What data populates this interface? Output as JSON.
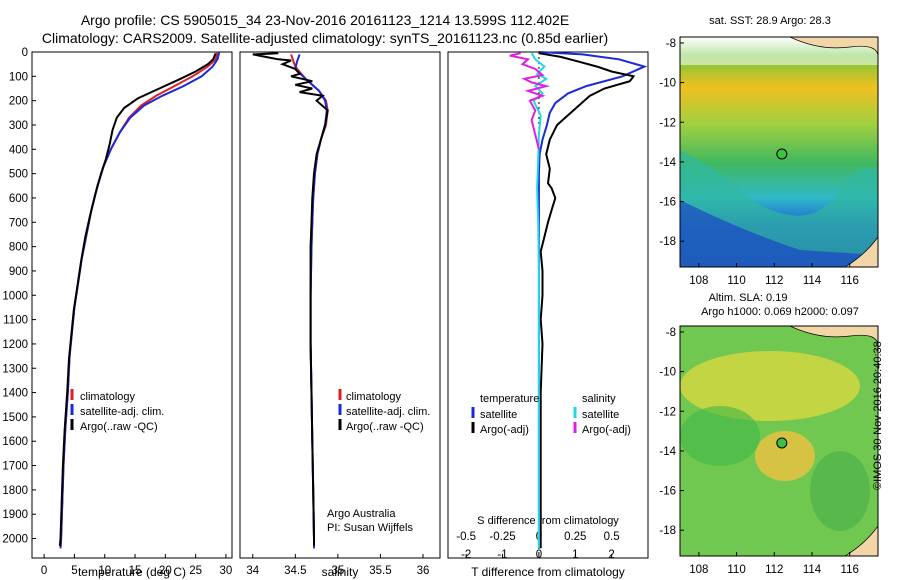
{
  "header": {
    "line1": "Argo profile: CS 5905015_34 23-Nov-2016 20161123_1214 13.599S 112.402E",
    "line2": "Climatology: CARS2009. Satellite-adjusted climatology: synTS_20161123.nc (0.85d earlier)"
  },
  "colors": {
    "climatology": "#e02020",
    "satellite": "#1a2ad8",
    "argo": "#000000",
    "salinity_sat": "#22d8e8",
    "salinity_argo": "#e020e0"
  },
  "chart_data": [
    {
      "type": "line",
      "xlabel": "temperature (deg C)",
      "ylabel": "",
      "xlim": [
        -2,
        31
      ],
      "ylim": [
        2080,
        0
      ],
      "xticks": [
        0,
        5,
        10,
        15,
        20,
        25,
        30
      ],
      "yticks": [
        0,
        100,
        200,
        300,
        400,
        500,
        600,
        700,
        800,
        900,
        1000,
        1100,
        1200,
        1300,
        1400,
        1500,
        1600,
        1700,
        1800,
        1900,
        2000
      ],
      "legend": [
        "climatology",
        "satellite-adj. clim.",
        "Argo(..raw -QC)"
      ],
      "series": [
        {
          "name": "climatology",
          "color": "#e02020",
          "points": [
            [
              28.6,
              0
            ],
            [
              28.3,
              30
            ],
            [
              27,
              60
            ],
            [
              24.5,
              100
            ],
            [
              21.5,
              140
            ],
            [
              18.5,
              180
            ],
            [
              16,
              220
            ],
            [
              14,
              270
            ],
            [
              12.5,
              330
            ],
            [
              11,
              400
            ],
            [
              9.8,
              470
            ],
            [
              8.8,
              550
            ],
            [
              7.8,
              650
            ],
            [
              7,
              750
            ],
            [
              6.2,
              850
            ],
            [
              5.6,
              950
            ],
            [
              5,
              1050
            ],
            [
              4.6,
              1150
            ],
            [
              4.2,
              1250
            ],
            [
              3.9,
              1400
            ],
            [
              3.5,
              1550
            ],
            [
              3.2,
              1700
            ],
            [
              3,
              1850
            ],
            [
              2.8,
              2000
            ],
            [
              2.7,
              2040
            ]
          ]
        },
        {
          "name": "satellite-adj. clim.",
          "color": "#1a2ad8",
          "points": [
            [
              28.9,
              0
            ],
            [
              28.6,
              30
            ],
            [
              27.8,
              60
            ],
            [
              26,
              100
            ],
            [
              23,
              140
            ],
            [
              19.5,
              180
            ],
            [
              16.5,
              220
            ],
            [
              14.2,
              270
            ],
            [
              12.5,
              330
            ],
            [
              11,
              400
            ],
            [
              9.8,
              470
            ],
            [
              8.8,
              550
            ],
            [
              7.8,
              650
            ],
            [
              7,
              750
            ],
            [
              6.2,
              850
            ],
            [
              5.6,
              950
            ],
            [
              5,
              1050
            ],
            [
              4.6,
              1150
            ],
            [
              4.2,
              1250
            ],
            [
              3.9,
              1400
            ],
            [
              3.5,
              1550
            ],
            [
              3.2,
              1700
            ],
            [
              3,
              1850
            ],
            [
              2.8,
              2000
            ],
            [
              2.7,
              2040
            ]
          ]
        },
        {
          "name": "Argo(..raw -QC)",
          "color": "#000000",
          "points": [
            [
              28.3,
              5
            ],
            [
              27.9,
              30
            ],
            [
              27,
              50
            ],
            [
              25,
              80
            ],
            [
              22.5,
              110
            ],
            [
              19,
              150
            ],
            [
              15.5,
              190
            ],
            [
              13.2,
              230
            ],
            [
              12,
              270
            ],
            [
              11.3,
              320
            ],
            [
              10.8,
              380
            ],
            [
              10.2,
              440
            ],
            [
              9.4,
              500
            ],
            [
              8.5,
              580
            ],
            [
              7.6,
              670
            ],
            [
              6.8,
              760
            ],
            [
              6.1,
              860
            ],
            [
              5.5,
              960
            ],
            [
              4.9,
              1060
            ],
            [
              4.5,
              1160
            ],
            [
              4.1,
              1260
            ],
            [
              3.8,
              1400
            ],
            [
              3.4,
              1550
            ],
            [
              3.1,
              1700
            ],
            [
              2.9,
              1850
            ],
            [
              2.7,
              2000
            ],
            [
              2.6,
              2030
            ]
          ]
        }
      ]
    },
    {
      "type": "line",
      "xlabel": "salinity",
      "xlim": [
        33.85,
        36.2
      ],
      "ylim": [
        2080,
        0
      ],
      "xticks": [
        34,
        34.5,
        35,
        35.5,
        36
      ],
      "legend": [
        "climatology",
        "satellite-adj. clim.",
        "Argo(..raw -QC)"
      ],
      "annotations": [
        "Argo Australia",
        "PI: Susan Wijffels"
      ],
      "series": [
        {
          "name": "climatology",
          "color": "#e02020",
          "points": [
            [
              34.45,
              10
            ],
            [
              34.5,
              60
            ],
            [
              34.62,
              110
            ],
            [
              34.78,
              160
            ],
            [
              34.86,
              200
            ],
            [
              34.88,
              240
            ],
            [
              34.86,
              300
            ],
            [
              34.8,
              360
            ],
            [
              34.76,
              420
            ],
            [
              34.73,
              500
            ],
            [
              34.71,
              600
            ],
            [
              34.7,
              700
            ],
            [
              34.69,
              800
            ],
            [
              34.68,
              1000
            ],
            [
              34.68,
              1200
            ],
            [
              34.69,
              1400
            ],
            [
              34.7,
              1600
            ],
            [
              34.71,
              1800
            ],
            [
              34.72,
              2000
            ],
            [
              34.72,
              2040
            ]
          ]
        },
        {
          "name": "satellite-adj. clim.",
          "color": "#1a2ad8",
          "points": [
            [
              34.55,
              10
            ],
            [
              34.52,
              40
            ],
            [
              34.5,
              70
            ],
            [
              34.62,
              110
            ],
            [
              34.78,
              160
            ],
            [
              34.85,
              200
            ],
            [
              34.87,
              240
            ],
            [
              34.85,
              300
            ],
            [
              34.8,
              360
            ],
            [
              34.76,
              420
            ],
            [
              34.73,
              500
            ],
            [
              34.71,
              600
            ],
            [
              34.7,
              700
            ],
            [
              34.69,
              800
            ],
            [
              34.68,
              1000
            ],
            [
              34.68,
              1200
            ],
            [
              34.69,
              1400
            ],
            [
              34.7,
              1600
            ],
            [
              34.71,
              1800
            ],
            [
              34.72,
              2000
            ],
            [
              34.72,
              2040
            ]
          ]
        },
        {
          "name": "Argo(..raw -QC)",
          "color": "#000000",
          "points": [
            [
              34.3,
              5
            ],
            [
              34.0,
              10
            ],
            [
              34.15,
              20
            ],
            [
              34.3,
              30
            ],
            [
              34.45,
              35
            ],
            [
              34.35,
              50
            ],
            [
              34.5,
              70
            ],
            [
              34.55,
              90
            ],
            [
              34.45,
              100
            ],
            [
              34.7,
              120
            ],
            [
              34.5,
              135
            ],
            [
              34.7,
              150
            ],
            [
              34.55,
              165
            ],
            [
              34.82,
              180
            ],
            [
              34.75,
              200
            ],
            [
              34.88,
              240
            ],
            [
              34.85,
              300
            ],
            [
              34.8,
              360
            ],
            [
              34.75,
              420
            ],
            [
              34.72,
              500
            ],
            [
              34.7,
              600
            ],
            [
              34.69,
              700
            ],
            [
              34.68,
              800
            ],
            [
              34.68,
              1000
            ],
            [
              34.68,
              1200
            ],
            [
              34.69,
              1400
            ],
            [
              34.7,
              1600
            ],
            [
              34.71,
              1800
            ],
            [
              34.72,
              2000
            ],
            [
              34.72,
              2030
            ]
          ]
        }
      ]
    },
    {
      "type": "line",
      "xlabel": "T difference from climatology",
      "top_axis_label": "S difference from climatology",
      "xlim_T": [
        -2.5,
        3.0
      ],
      "xticks_T": [
        -2,
        -1,
        0,
        1,
        2
      ],
      "xticks_S": [
        "-0.5",
        "-0.25",
        "0",
        "0.25",
        "0.5"
      ],
      "legend": {
        "left_title": "temperature",
        "right_title": "salinity",
        "left": [
          "satellite",
          "Argo(-adj)"
        ],
        "right": [
          "satellite",
          "Argo(-adj)"
        ]
      },
      "series": [
        {
          "name": "temperature satellite",
          "color": "#1a2ad8",
          "points": [
            [
              0,
              0
            ],
            [
              1.2,
              10
            ],
            [
              2.2,
              30
            ],
            [
              2.9,
              60
            ],
            [
              2.3,
              100
            ],
            [
              1.3,
              140
            ],
            [
              0.8,
              170
            ],
            [
              0.45,
              210
            ],
            [
              0.3,
              250
            ],
            [
              0.22,
              300
            ],
            [
              0.1,
              360
            ],
            [
              0.02,
              420
            ],
            [
              0,
              500
            ],
            [
              0,
              2040
            ]
          ]
        },
        {
          "name": "temperature Argo(-adj)",
          "color": "#000000",
          "points": [
            [
              0,
              5
            ],
            [
              0.6,
              20
            ],
            [
              1.1,
              40
            ],
            [
              1.6,
              60
            ],
            [
              2.0,
              80
            ],
            [
              2.6,
              100
            ],
            [
              2.5,
              120
            ],
            [
              1.8,
              150
            ],
            [
              1.4,
              180
            ],
            [
              1.1,
              220
            ],
            [
              0.8,
              260
            ],
            [
              0.5,
              300
            ],
            [
              0.3,
              360
            ],
            [
              0.2,
              420
            ],
            [
              0.3,
              480
            ],
            [
              0.25,
              540
            ],
            [
              0.35,
              560
            ],
            [
              0.45,
              600
            ],
            [
              0.35,
              650
            ],
            [
              0.25,
              700
            ],
            [
              0.15,
              760
            ],
            [
              0.05,
              820
            ],
            [
              0.1,
              900
            ],
            [
              0.1,
              1000
            ],
            [
              0.05,
              1100
            ],
            [
              0.1,
              1200
            ],
            [
              0.05,
              1400
            ],
            [
              0.05,
              1600
            ],
            [
              0.05,
              1800
            ],
            [
              0.05,
              2000
            ],
            [
              0.05,
              2040
            ]
          ]
        },
        {
          "name": "salinity satellite",
          "color": "#22d8e8",
          "points": [
            [
              -0.2,
              5
            ],
            [
              -0.1,
              30
            ],
            [
              0.15,
              60
            ],
            [
              -0.05,
              90
            ],
            [
              0.2,
              110
            ],
            [
              -0.1,
              140
            ],
            [
              0.1,
              170
            ],
            [
              -0.15,
              200
            ],
            [
              0.05,
              260
            ],
            [
              0,
              340
            ],
            [
              -0.02,
              440
            ],
            [
              -0.05,
              560
            ],
            [
              -0.02,
              700
            ],
            [
              0,
              900
            ],
            [
              0,
              2040
            ]
          ]
        },
        {
          "name": "salinity Argo(-adj)",
          "color": "#e020e0",
          "points": [
            [
              -0.5,
              5
            ],
            [
              -0.8,
              15
            ],
            [
              -0.3,
              30
            ],
            [
              -0.45,
              50
            ],
            [
              -0.1,
              70
            ],
            [
              0.1,
              95
            ],
            [
              -0.4,
              110
            ],
            [
              -0.2,
              125
            ],
            [
              0.2,
              140
            ],
            [
              -0.3,
              160
            ],
            [
              0.1,
              180
            ],
            [
              -0.25,
              200
            ],
            [
              -0.1,
              240
            ],
            [
              -0.2,
              280
            ],
            [
              -0.1,
              340
            ],
            [
              0,
              400
            ]
          ]
        }
      ]
    },
    {
      "type": "heatmap",
      "title": "sat. SST: 28.9 Argo: 28.3",
      "xticks": [
        108,
        110,
        112,
        114,
        116
      ],
      "yticks": [
        -8,
        -10,
        -12,
        -14,
        -16,
        -18
      ],
      "xlim": [
        107,
        117.5
      ],
      "ylim": [
        -19.3,
        -7.7
      ],
      "marker": {
        "lon": 112.4,
        "lat": -13.6
      }
    },
    {
      "type": "heatmap",
      "title": "Altim. SLA: 0.19",
      "subtitle": "Argo h1000: 0.069 h2000: 0.097",
      "xticks": [
        108,
        110,
        112,
        114,
        116
      ],
      "yticks": [
        -8,
        -10,
        -12,
        -14,
        -16,
        -18
      ],
      "xlim": [
        107,
        117.5
      ],
      "ylim": [
        -19.3,
        -7.7
      ],
      "marker": {
        "lon": 112.4,
        "lat": -13.6
      }
    }
  ],
  "footer": {
    "credit": "©IMOS 30-Nov-2016 20:40:38"
  }
}
